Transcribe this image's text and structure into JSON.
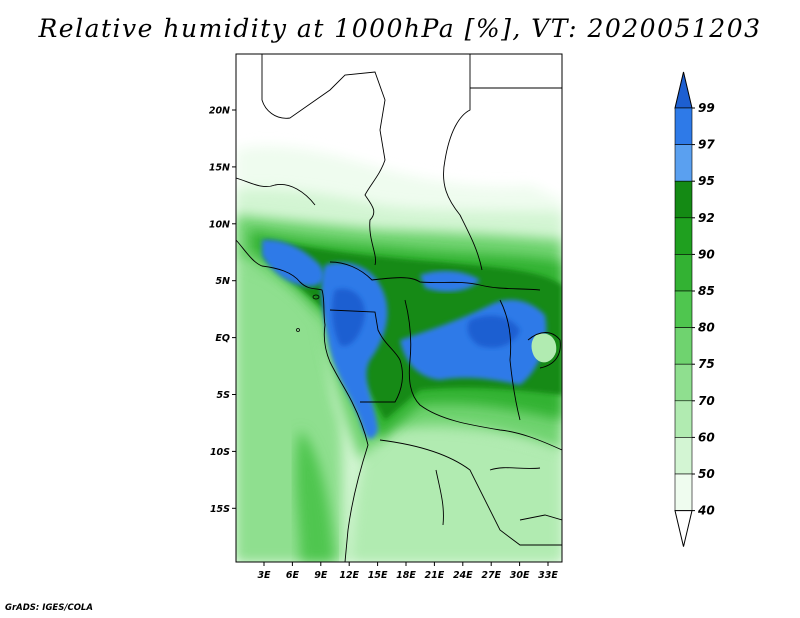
{
  "title": "Relative humidity at 1000hPa [%], VT: 2020051203",
  "credit": "GrADS: IGES/COLA",
  "map": {
    "lon_labels": [
      "3E",
      "6E",
      "9E",
      "12E",
      "15E",
      "18E",
      "21E",
      "24E",
      "27E",
      "30E",
      "33E"
    ],
    "lat_labels": [
      "20N",
      "15N",
      "10N",
      "5N",
      "EQ",
      "5S",
      "10S",
      "15S"
    ]
  },
  "colorbar": {
    "labels": [
      "99",
      "97",
      "95",
      "92",
      "90",
      "85",
      "80",
      "75",
      "70",
      "60",
      "50",
      "40"
    ],
    "colors": [
      "#1d5fd1",
      "#2e7ae8",
      "#5aa0f0",
      "#148a14",
      "#1fa01f",
      "#33b233",
      "#4fc64f",
      "#6fd36f",
      "#8fdf8f",
      "#b1ebb1",
      "#d3f5d3",
      "#effcef"
    ]
  }
}
